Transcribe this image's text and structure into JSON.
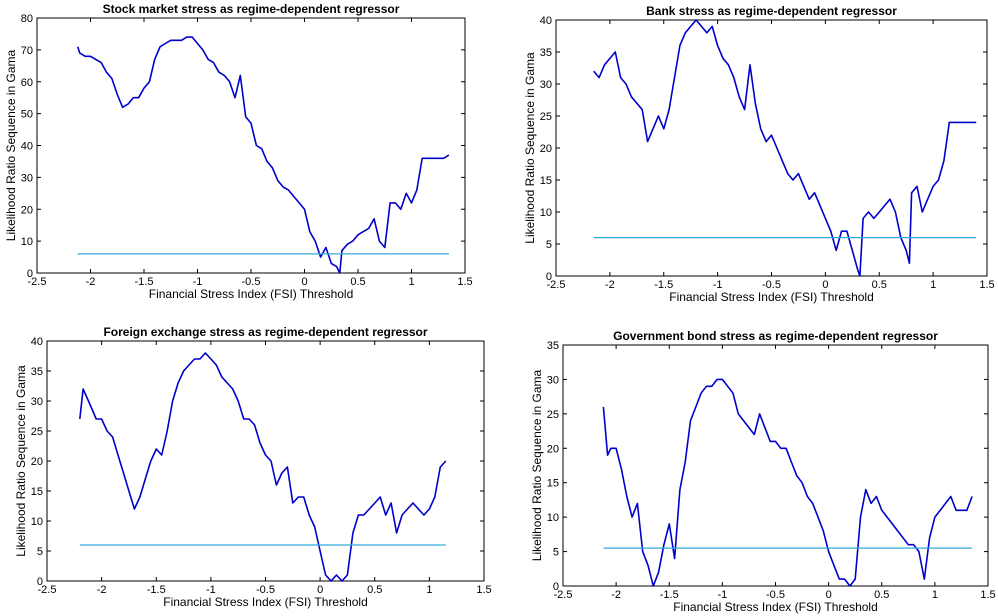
{
  "chart_data": [
    {
      "type": "line",
      "title": "Stock market stress as regime-dependent regressor",
      "xlabel": "Financial Stress Index (FSI) Threshold",
      "ylabel": "Likelihood Ratio Sequence in Gama",
      "xlim": [
        -2.5,
        1.5
      ],
      "ylim": [
        0,
        80
      ],
      "xticks": [
        -2.5,
        -2,
        -1.5,
        -1,
        -0.5,
        0,
        0.5,
        1,
        1.5
      ],
      "xtick_labels": [
        "-2.5",
        "-2",
        "-1.5",
        "-1",
        "-0.5",
        "0",
        "0.5",
        "1",
        "1.5"
      ],
      "yticks": [
        0,
        10,
        20,
        30,
        40,
        50,
        60,
        70,
        80
      ],
      "ytick_labels": [
        "0",
        "10",
        "20",
        "30",
        "40",
        "50",
        "60",
        "70",
        "80"
      ],
      "series": [
        {
          "color": "#0000cc",
          "x": [
            -2.12,
            -2.1,
            -2.05,
            -2.0,
            -1.95,
            -1.9,
            -1.85,
            -1.8,
            -1.75,
            -1.7,
            -1.65,
            -1.6,
            -1.55,
            -1.5,
            -1.45,
            -1.4,
            -1.35,
            -1.3,
            -1.25,
            -1.2,
            -1.15,
            -1.1,
            -1.05,
            -1.0,
            -0.95,
            -0.9,
            -0.85,
            -0.8,
            -0.75,
            -0.7,
            -0.65,
            -0.6,
            -0.55,
            -0.5,
            -0.45,
            -0.4,
            -0.35,
            -0.3,
            -0.25,
            -0.2,
            -0.15,
            -0.1,
            -0.05,
            0.0,
            0.05,
            0.1,
            0.15,
            0.2,
            0.25,
            0.3,
            0.33,
            0.35,
            0.4,
            0.45,
            0.5,
            0.55,
            0.6,
            0.65,
            0.7,
            0.75,
            0.8,
            0.85,
            0.9,
            0.95,
            1.0,
            1.05,
            1.1,
            1.15,
            1.2,
            1.25,
            1.3,
            1.35
          ],
          "y": [
            71,
            69,
            68,
            68,
            67,
            66,
            63,
            61,
            56,
            52,
            53,
            55,
            55,
            58,
            60,
            67,
            71,
            72,
            73,
            73,
            73,
            74,
            74,
            72,
            70,
            67,
            66,
            63,
            62,
            60,
            55,
            62,
            49,
            47,
            40,
            39,
            35,
            33,
            29,
            27,
            26,
            24,
            22,
            20,
            13,
            10,
            5,
            8,
            3,
            2,
            0,
            7,
            9,
            10,
            12,
            13,
            14,
            17,
            10,
            8,
            22,
            22,
            20,
            25,
            22,
            26,
            36,
            36,
            36,
            36,
            36,
            37
          ]
        },
        {
          "color": "#33aadd",
          "x": [
            -2.12,
            1.35
          ],
          "y": [
            6,
            6
          ]
        }
      ]
    },
    {
      "type": "line",
      "title": "Bank stress as regime-dependent regressor",
      "xlabel": "Financial Stress Index (FSI) Threshold",
      "ylabel": "Likelihood Ratio Sequence in Gama",
      "xlim": [
        -2.5,
        1.5
      ],
      "ylim": [
        0,
        40
      ],
      "xticks": [
        -2.5,
        -2,
        -1.5,
        -1,
        -0.5,
        0,
        0.5,
        1,
        1.5
      ],
      "xtick_labels": [
        "-2.5",
        "-2",
        "-1.5",
        "-1",
        "-0.5",
        "0",
        "0.5",
        "1",
        "1.5"
      ],
      "yticks": [
        0,
        5,
        10,
        15,
        20,
        25,
        30,
        35,
        40
      ],
      "ytick_labels": [
        "0",
        "5",
        "10",
        "15",
        "20",
        "25",
        "30",
        "35",
        "40"
      ],
      "series": [
        {
          "color": "#0000cc",
          "x": [
            -2.15,
            -2.1,
            -2.05,
            -2.0,
            -1.95,
            -1.9,
            -1.85,
            -1.8,
            -1.75,
            -1.7,
            -1.65,
            -1.6,
            -1.55,
            -1.5,
            -1.45,
            -1.4,
            -1.35,
            -1.3,
            -1.25,
            -1.2,
            -1.15,
            -1.1,
            -1.05,
            -1.0,
            -0.95,
            -0.9,
            -0.85,
            -0.8,
            -0.75,
            -0.7,
            -0.65,
            -0.6,
            -0.55,
            -0.5,
            -0.45,
            -0.4,
            -0.35,
            -0.3,
            -0.25,
            -0.2,
            -0.15,
            -0.1,
            -0.05,
            0.0,
            0.05,
            0.1,
            0.15,
            0.2,
            0.25,
            0.3,
            0.32,
            0.35,
            0.4,
            0.45,
            0.5,
            0.55,
            0.6,
            0.65,
            0.7,
            0.75,
            0.78,
            0.8,
            0.85,
            0.9,
            0.95,
            1.0,
            1.05,
            1.1,
            1.15,
            1.2,
            1.25,
            1.3,
            1.35,
            1.4
          ],
          "y": [
            32,
            31,
            33,
            34,
            35,
            31,
            30,
            28,
            27,
            26,
            21,
            23,
            25,
            23,
            26,
            31,
            36,
            38,
            39,
            40,
            39,
            38,
            39,
            36,
            34,
            33,
            31,
            28,
            26,
            33,
            27,
            23,
            21,
            22,
            20,
            18,
            16,
            15,
            16,
            14,
            12,
            13,
            11,
            9,
            7,
            4,
            7,
            7,
            4,
            1,
            0,
            9,
            10,
            9,
            10,
            11,
            12,
            10,
            6,
            4,
            2,
            13,
            14,
            10,
            12,
            14,
            15,
            18,
            24,
            24,
            24,
            24,
            24,
            24
          ]
        },
        {
          "color": "#33aadd",
          "x": [
            -2.15,
            1.4
          ],
          "y": [
            6,
            6
          ]
        }
      ]
    },
    {
      "type": "line",
      "title": "Foreign exchange stress as regime-dependent regressor",
      "xlabel": "Financial Stress Index (FSI) Threshold",
      "ylabel": "Likelihood Ratio Sequence in Gama",
      "xlim": [
        -2.5,
        1.5
      ],
      "ylim": [
        0,
        40
      ],
      "xticks": [
        -2.5,
        -2,
        -1.5,
        -1,
        -0.5,
        0,
        0.5,
        1,
        1.5
      ],
      "xtick_labels": [
        "-2.5",
        "-2",
        "-1.5",
        "-1",
        "-0.5",
        "0",
        "0.5",
        "1",
        "1.5"
      ],
      "yticks": [
        0,
        5,
        10,
        15,
        20,
        25,
        30,
        35,
        40
      ],
      "ytick_labels": [
        "0",
        "5",
        "10",
        "15",
        "20",
        "25",
        "30",
        "35",
        "40"
      ],
      "series": [
        {
          "color": "#0000cc",
          "x": [
            -2.2,
            -2.17,
            -2.12,
            -2.05,
            -2.0,
            -1.95,
            -1.9,
            -1.85,
            -1.8,
            -1.75,
            -1.7,
            -1.65,
            -1.6,
            -1.55,
            -1.5,
            -1.45,
            -1.4,
            -1.35,
            -1.3,
            -1.25,
            -1.2,
            -1.15,
            -1.1,
            -1.05,
            -1.0,
            -0.95,
            -0.9,
            -0.85,
            -0.8,
            -0.75,
            -0.7,
            -0.65,
            -0.6,
            -0.55,
            -0.5,
            -0.45,
            -0.4,
            -0.35,
            -0.3,
            -0.25,
            -0.2,
            -0.15,
            -0.1,
            -0.05,
            0.0,
            0.05,
            0.1,
            0.15,
            0.2,
            0.25,
            0.3,
            0.35,
            0.4,
            0.45,
            0.5,
            0.55,
            0.6,
            0.65,
            0.7,
            0.75,
            0.8,
            0.85,
            0.9,
            0.95,
            1.0,
            1.05,
            1.1,
            1.15
          ],
          "y": [
            27,
            32,
            30,
            27,
            27,
            25,
            24,
            21,
            18,
            15,
            12,
            14,
            17,
            20,
            22,
            21,
            25,
            30,
            33,
            35,
            36,
            37,
            37,
            38,
            37,
            36,
            34,
            33,
            32,
            30,
            27,
            27,
            26,
            23,
            21,
            20,
            16,
            18,
            19,
            13,
            14,
            14,
            11,
            9,
            5,
            1,
            0,
            1,
            0,
            1,
            8,
            11,
            11,
            12,
            13,
            14,
            11,
            13,
            8,
            11,
            12,
            13,
            12,
            11,
            12,
            14,
            19,
            20
          ]
        },
        {
          "color": "#33aadd",
          "x": [
            -2.2,
            1.15
          ],
          "y": [
            6,
            6
          ]
        }
      ]
    },
    {
      "type": "line",
      "title": "Government bond stress as regime-dependent regressor",
      "xlabel": "Financial Stress Index (FSI) Threshold",
      "ylabel": "Likelihood Ratio Sequence in Gama",
      "xlim": [
        -2.5,
        1.5
      ],
      "ylim": [
        0,
        35
      ],
      "xticks": [
        -2.5,
        -2,
        -1.5,
        -1,
        -0.5,
        0,
        0.5,
        1,
        1.5
      ],
      "xtick_labels": [
        "-2.5",
        "-2",
        "-1.5",
        "-1",
        "-0.5",
        "0",
        "0.5",
        "1",
        "1.5"
      ],
      "yticks": [
        0,
        5,
        10,
        15,
        20,
        25,
        30,
        35
      ],
      "ytick_labels": [
        "0",
        "5",
        "10",
        "15",
        "20",
        "25",
        "30",
        "35"
      ],
      "series": [
        {
          "color": "#0000cc",
          "x": [
            -2.12,
            -2.08,
            -2.05,
            -2.0,
            -1.95,
            -1.9,
            -1.85,
            -1.8,
            -1.75,
            -1.7,
            -1.65,
            -1.6,
            -1.55,
            -1.5,
            -1.45,
            -1.4,
            -1.35,
            -1.3,
            -1.25,
            -1.2,
            -1.15,
            -1.1,
            -1.05,
            -1.0,
            -0.95,
            -0.9,
            -0.85,
            -0.8,
            -0.75,
            -0.7,
            -0.65,
            -0.6,
            -0.55,
            -0.5,
            -0.45,
            -0.4,
            -0.35,
            -0.3,
            -0.25,
            -0.2,
            -0.15,
            -0.1,
            -0.05,
            0.0,
            0.05,
            0.1,
            0.15,
            0.2,
            0.25,
            0.3,
            0.35,
            0.4,
            0.45,
            0.5,
            0.55,
            0.6,
            0.65,
            0.7,
            0.75,
            0.8,
            0.85,
            0.9,
            0.95,
            1.0,
            1.05,
            1.1,
            1.15,
            1.2,
            1.25,
            1.3,
            1.35
          ],
          "y": [
            26,
            19,
            20,
            20,
            17,
            13,
            10,
            12,
            5,
            3,
            0,
            2,
            6,
            9,
            4,
            14,
            18,
            24,
            26,
            28,
            29,
            29,
            30,
            30,
            29,
            28,
            25,
            24,
            23,
            22,
            25,
            23,
            21,
            21,
            20,
            20,
            18,
            16,
            15,
            13,
            12,
            10,
            8,
            5,
            3,
            1,
            1,
            0,
            1,
            10,
            14,
            12,
            13,
            11,
            10,
            9,
            8,
            7,
            6,
            6,
            5,
            1,
            7,
            10,
            11,
            12,
            13,
            11,
            11,
            11,
            13
          ]
        },
        {
          "color": "#33aadd",
          "x": [
            -2.12,
            1.35
          ],
          "y": [
            5.5,
            5.5
          ]
        }
      ]
    }
  ]
}
